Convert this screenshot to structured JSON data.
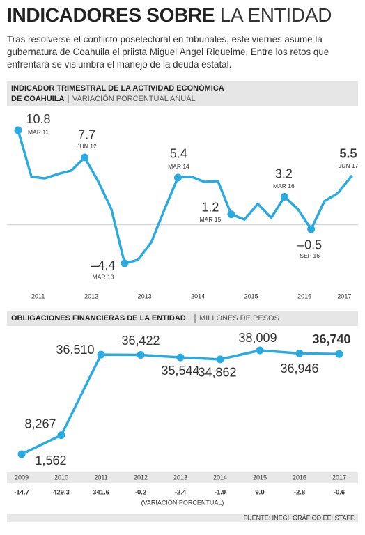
{
  "title_bold": "INDICADORES SOBRE",
  "title_light": "LA ENTIDAD",
  "subtitle": "Tras resolverse el conflicto poselectoral en tribunales, este viernes asume la gubernatura de Coahuila el priista Miguel Ángel Riquelme. Entre los retos que enfrentará se vislumbra el manejo de la deuda estatal.",
  "chart_data": [
    {
      "type": "line",
      "title": "INDICADOR TRIMESTRAL DE LA ACTIVIDAD ECONÓMICA",
      "title_2": "DE COAHUILA",
      "subtitle": "VARIACIÓN PORCENTUAL ANUAL",
      "color": "#29abe2",
      "categories": [
        "MAR 11",
        null,
        null,
        null,
        null,
        "JUN 12",
        null,
        null,
        "MAR 13",
        null,
        null,
        null,
        "MAR 14",
        null,
        null,
        null,
        "MAR 15",
        null,
        null,
        null,
        "MAR 16",
        null,
        "SEP 16",
        null,
        null,
        "JUN 17"
      ],
      "values": [
        10.8,
        5.5,
        5.3,
        5.8,
        6.2,
        7.7,
        5.0,
        1.8,
        -4.4,
        -4.0,
        -2.0,
        1.8,
        5.4,
        5.5,
        4.9,
        5.0,
        1.2,
        0.6,
        2.4,
        0.8,
        3.2,
        1.8,
        -0.5,
        2.7,
        3.6,
        5.5
      ],
      "value_labels": [
        "10.8",
        null,
        null,
        null,
        null,
        "7.7",
        null,
        null,
        "–4.4",
        null,
        null,
        null,
        "5.4",
        null,
        null,
        null,
        "1.2",
        null,
        null,
        null,
        "3.2",
        null,
        "–0.5",
        null,
        null,
        "5.5"
      ],
      "year_labels": [
        "2011",
        "2012",
        "2013",
        "2014",
        "2015",
        "2016",
        "2017"
      ]
    },
    {
      "type": "line",
      "title": "OBLIGACIONES FINANCIERAS DE LA ENTIDAD",
      "subtitle": "MILLONES DE PESOS",
      "color": "#29abe2",
      "categories": [
        "2009",
        "2010",
        "2011",
        "2012",
        "2013",
        "2014",
        "2015",
        "2016",
        "2017"
      ],
      "values": [
        1562,
        8267,
        36510,
        36422,
        35544,
        34862,
        38009,
        36946,
        36740
      ],
      "value_labels": [
        "1,562",
        "8,267",
        "36,510",
        "36,422",
        "35,544",
        "34,862",
        "38,009",
        "36,946",
        "36,740"
      ],
      "variation": [
        -14.7,
        429.3,
        341.6,
        -0.2,
        -2.4,
        -1.9,
        9.0,
        -2.8,
        -0.6
      ],
      "variation_labels": [
        "-14.7",
        "429.3",
        "341.6",
        "-0.2",
        "-2.4",
        "-1.9",
        "9.0",
        "-2.8",
        "-0.6"
      ],
      "variation_title": "(VARIACIÓN PORCENTUAL)"
    }
  ],
  "source": "FUENTE: INEGI, GRÁFICO EE: STAFF."
}
